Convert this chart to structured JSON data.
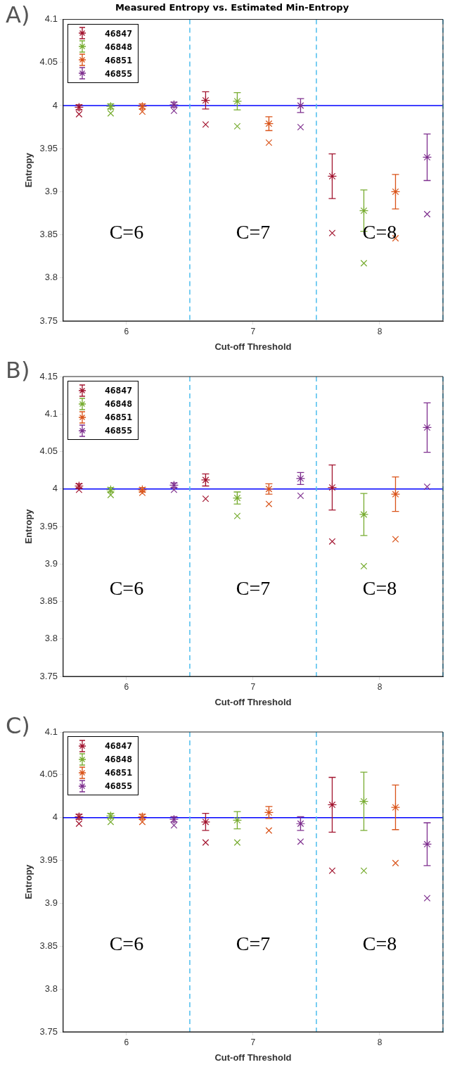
{
  "chart_data": [
    {
      "type": "scatter",
      "title": "Measured Entropy vs. Estimated Min-Entropy",
      "xlabel": "Cut-off Threshold",
      "ylabel": "Entropy",
      "xlim": [
        5.5,
        8.5
      ],
      "xticks": [
        6,
        7,
        8
      ],
      "ylim": [
        3.75,
        4.1
      ],
      "yticks": [
        3.75,
        3.8,
        3.85,
        3.9,
        3.95,
        4,
        4.05,
        4.1
      ],
      "grid": false,
      "legend": "top left",
      "series": [
        {
          "name": "46847",
          "color": "#a2142f",
          "x": [
            5.625,
            6.625,
            7.625
          ],
          "values": [
            3.998,
            4.006,
            3.918
          ],
          "errors": [
            0.003,
            0.01,
            0.026
          ]
        },
        {
          "name": "46848",
          "color": "#77ac30",
          "x": [
            5.875,
            6.875,
            7.875
          ],
          "values": [
            3.999,
            4.005,
            3.878
          ],
          "errors": [
            0.003,
            0.01,
            0.024
          ]
        },
        {
          "name": "46851",
          "color": "#d95319",
          "x": [
            6.125,
            7.125,
            8.125
          ],
          "values": [
            3.999,
            3.979,
            3.9
          ],
          "errors": [
            0.003,
            0.008,
            0.02
          ]
        },
        {
          "name": "46855",
          "color": "#7e2f8e",
          "x": [
            6.375,
            7.375,
            8.375
          ],
          "values": [
            4.001,
            4.0,
            3.94
          ],
          "errors": [
            0.003,
            0.008,
            0.027
          ]
        },
        {
          "color": "#a2142f",
          "marker": "cross",
          "x": [
            5.625,
            6.625,
            7.625
          ],
          "values": [
            3.99,
            3.978,
            3.852
          ]
        },
        {
          "color": "#77ac30",
          "marker": "cross",
          "x": [
            5.875,
            6.875,
            7.875
          ],
          "values": [
            3.991,
            3.976,
            3.817
          ]
        },
        {
          "color": "#d95319",
          "marker": "cross",
          "x": [
            6.125,
            7.125,
            8.125
          ],
          "values": [
            3.993,
            3.957,
            3.846
          ]
        },
        {
          "color": "#7e2f8e",
          "marker": "cross",
          "x": [
            6.375,
            7.375,
            8.375
          ],
          "values": [
            3.994,
            3.975,
            3.874
          ]
        }
      ],
      "ref_lines": [
        {
          "axis": "y",
          "value": 4,
          "color": "#0000ff",
          "line_style": "solid"
        },
        {
          "axis": "x",
          "value": 6.5,
          "color": "#4dbeee",
          "line_style": "dashed"
        },
        {
          "axis": "x",
          "value": 7.5,
          "color": "#4dbeee",
          "line_style": "dashed"
        },
        {
          "axis": "x",
          "value": 8.5,
          "color": "#4dbeee",
          "line_style": "dashed"
        }
      ],
      "annotations": [
        "A)",
        "C=6",
        "C=7",
        "C=8"
      ]
    },
    {
      "type": "scatter",
      "xlabel": "Cut-off Threshold",
      "ylabel": "Entropy",
      "xlim": [
        5.5,
        8.5
      ],
      "xticks": [
        6,
        7,
        8
      ],
      "ylim": [
        3.75,
        4.15
      ],
      "yticks": [
        3.75,
        3.8,
        3.85,
        3.9,
        3.95,
        4,
        4.05,
        4.1,
        4.15
      ],
      "grid": false,
      "legend": "top left",
      "series": [
        {
          "name": "46847",
          "color": "#a2142f",
          "x": [
            5.625,
            6.625,
            7.625
          ],
          "values": [
            4.004,
            4.012,
            4.002
          ],
          "errors": [
            0.003,
            0.008,
            0.03
          ]
        },
        {
          "name": "46848",
          "color": "#77ac30",
          "x": [
            5.875,
            6.875,
            7.875
          ],
          "values": [
            3.999,
            3.988,
            3.966
          ],
          "errors": [
            0.003,
            0.008,
            0.028
          ]
        },
        {
          "name": "46851",
          "color": "#d95319",
          "x": [
            6.125,
            7.125,
            8.125
          ],
          "values": [
            3.999,
            4.0,
            3.993
          ],
          "errors": [
            0.003,
            0.007,
            0.023
          ]
        },
        {
          "name": "46855",
          "color": "#7e2f8e",
          "x": [
            6.375,
            7.375,
            8.375
          ],
          "values": [
            4.005,
            4.014,
            4.082
          ],
          "errors": [
            0.003,
            0.008,
            0.033
          ]
        },
        {
          "color": "#a2142f",
          "marker": "cross",
          "x": [
            5.625,
            6.625,
            7.625
          ],
          "values": [
            3.999,
            3.987,
            3.93
          ]
        },
        {
          "color": "#77ac30",
          "marker": "cross",
          "x": [
            5.875,
            6.875,
            7.875
          ],
          "values": [
            3.992,
            3.964,
            3.897
          ]
        },
        {
          "color": "#d95319",
          "marker": "cross",
          "x": [
            6.125,
            7.125,
            8.125
          ],
          "values": [
            3.995,
            3.98,
            3.933
          ]
        },
        {
          "color": "#7e2f8e",
          "marker": "cross",
          "x": [
            6.375,
            7.375,
            8.375
          ],
          "values": [
            3.999,
            3.991,
            4.003
          ]
        }
      ],
      "ref_lines": [
        {
          "axis": "y",
          "value": 4,
          "color": "#0000ff",
          "line_style": "solid"
        },
        {
          "axis": "x",
          "value": 6.5,
          "color": "#4dbeee",
          "line_style": "dashed"
        },
        {
          "axis": "x",
          "value": 7.5,
          "color": "#4dbeee",
          "line_style": "dashed"
        },
        {
          "axis": "x",
          "value": 8.5,
          "color": "#4dbeee",
          "line_style": "dashed"
        }
      ],
      "annotations": [
        "B)",
        "C=6",
        "C=7",
        "C=8"
      ]
    },
    {
      "type": "scatter",
      "xlabel": "Cut-off Threshold",
      "ylabel": "Entropy",
      "xlim": [
        5.5,
        8.5
      ],
      "xticks": [
        6,
        7,
        8
      ],
      "ylim": [
        3.75,
        4.1
      ],
      "yticks": [
        3.75,
        3.8,
        3.85,
        3.9,
        3.95,
        4,
        4.05,
        4.1
      ],
      "grid": false,
      "legend": "top left",
      "series": [
        {
          "name": "46847",
          "color": "#a2142f",
          "x": [
            5.625,
            6.625,
            7.625
          ],
          "values": [
            4.001,
            3.995,
            4.015
          ],
          "errors": [
            0.003,
            0.01,
            0.032
          ]
        },
        {
          "name": "46848",
          "color": "#77ac30",
          "x": [
            5.875,
            6.875,
            7.875
          ],
          "values": [
            4.002,
            3.997,
            4.019
          ],
          "errors": [
            0.003,
            0.01,
            0.034
          ]
        },
        {
          "name": "46851",
          "color": "#d95319",
          "x": [
            6.125,
            7.125,
            8.125
          ],
          "values": [
            4.001,
            4.006,
            4.012
          ],
          "errors": [
            0.003,
            0.007,
            0.026
          ]
        },
        {
          "name": "46855",
          "color": "#7e2f8e",
          "x": [
            6.375,
            7.375,
            8.375
          ],
          "values": [
            3.998,
            3.993,
            3.969
          ],
          "errors": [
            0.003,
            0.008,
            0.025
          ]
        },
        {
          "color": "#a2142f",
          "marker": "cross",
          "x": [
            5.625,
            6.625,
            7.625
          ],
          "values": [
            3.993,
            3.971,
            3.938
          ]
        },
        {
          "color": "#77ac30",
          "marker": "cross",
          "x": [
            5.875,
            6.875,
            7.875
          ],
          "values": [
            3.995,
            3.971,
            3.938
          ]
        },
        {
          "color": "#d95319",
          "marker": "cross",
          "x": [
            6.125,
            7.125,
            8.125
          ],
          "values": [
            3.995,
            3.985,
            3.947
          ]
        },
        {
          "color": "#7e2f8e",
          "marker": "cross",
          "x": [
            6.375,
            7.375,
            8.375
          ],
          "values": [
            3.991,
            3.972,
            3.906
          ]
        }
      ],
      "ref_lines": [
        {
          "axis": "y",
          "value": 4,
          "color": "#0000ff",
          "line_style": "solid"
        },
        {
          "axis": "x",
          "value": 6.5,
          "color": "#4dbeee",
          "line_style": "dashed"
        },
        {
          "axis": "x",
          "value": 7.5,
          "color": "#4dbeee",
          "line_style": "dashed"
        },
        {
          "axis": "x",
          "value": 8.5,
          "color": "#4dbeee",
          "line_style": "dashed"
        }
      ],
      "annotations": [
        "C)",
        "C=6",
        "C=7",
        "C=8"
      ]
    }
  ]
}
